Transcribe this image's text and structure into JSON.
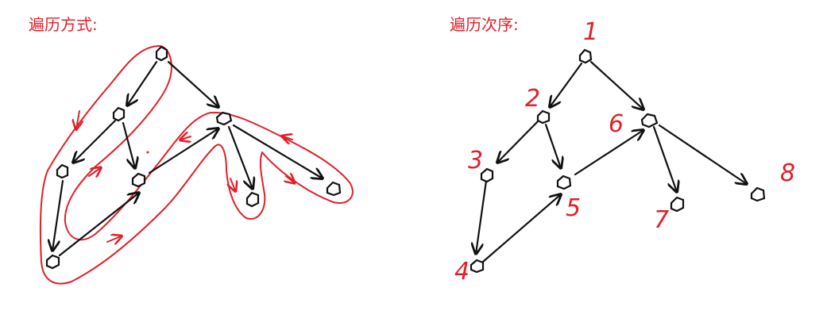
{
  "left_panel": {
    "title": "遍历方式:"
  },
  "right_panel": {
    "title": "遍历次序:",
    "order_labels": [
      "1",
      "2",
      "3",
      "4",
      "5",
      "6",
      "7",
      "8"
    ]
  },
  "colors": {
    "ink": "#111111",
    "annotation": "#e0202a",
    "background": "#ffffff"
  }
}
